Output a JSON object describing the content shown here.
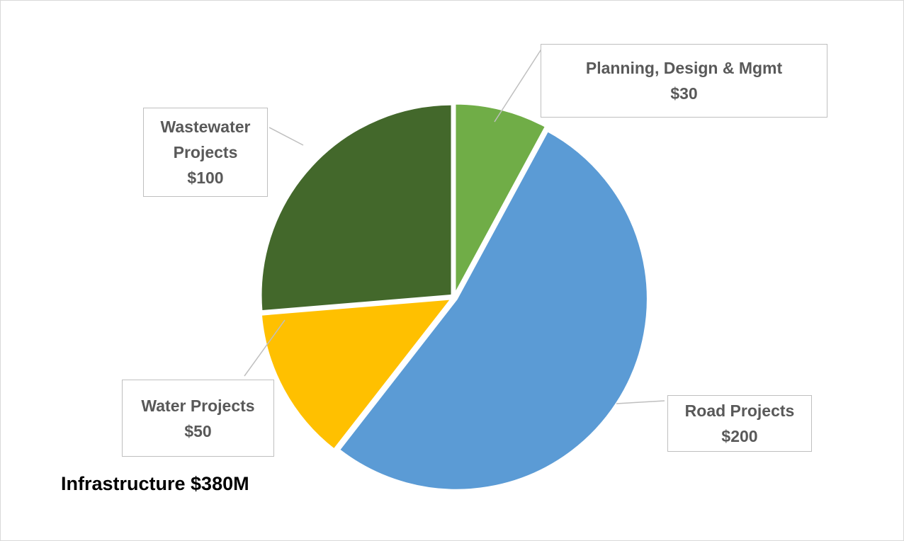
{
  "chart_data": {
    "type": "pie",
    "title": "Infrastructure $380M",
    "categories": [
      "Planning, Design & Mgmt",
      "Road Projects",
      "Water Projects",
      "Wastewater Projects"
    ],
    "values": [
      30,
      200,
      50,
      100
    ],
    "value_labels": [
      "$30",
      "$200",
      "$50",
      "$100"
    ],
    "colors": [
      "#70ad47",
      "#5b9bd5",
      "#ffc000",
      "#43682b"
    ]
  }
}
